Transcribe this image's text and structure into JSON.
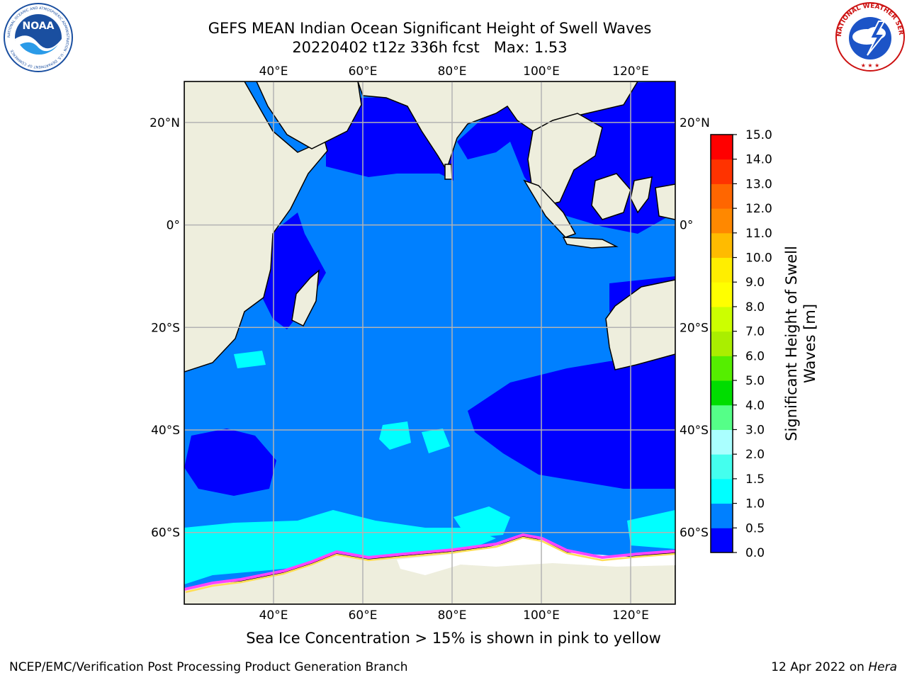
{
  "header": {
    "title_line1": "GEFS MEAN Indian Ocean Significant Height of Swell Waves",
    "title_line2": "20220402 t12z 336h fcst   Max: 1.53"
  },
  "logos": {
    "left": {
      "text": "NOAA",
      "ring_text": "NATIONAL OCEANIC AND ATMOSPHERIC ADMINISTRATION · U.S. DEPARTMENT OF COMMERCE"
    },
    "right": {
      "ring_text": "NATIONAL WEATHER SERVICE"
    }
  },
  "map": {
    "projection": "lat-lon",
    "lon_range": [
      20,
      130
    ],
    "lat_range": [
      -74,
      28
    ],
    "lon_ticks": [
      "40°E",
      "60°E",
      "80°E",
      "100°E",
      "120°E"
    ],
    "lat_ticks": [
      "20°N",
      "0°",
      "20°S",
      "40°S",
      "60°S"
    ],
    "grid": true,
    "colors": {
      "land": "#eeeedd",
      "ocean_0_0.5": "#0000ff",
      "ocean_0.5_1.0": "#0080ff",
      "ocean_1.0_1.5": "#00ffff",
      "sea_ice_pink": "#ff44ff",
      "sea_ice_yellow": "#ffdd55"
    },
    "max_value": 1.53
  },
  "colorbar": {
    "label": "Significant Height of Swell Waves [m]",
    "ticks": [
      "0.0",
      "0.5",
      "1.0",
      "1.5",
      "2.0",
      "3.0",
      "4.0",
      "5.0",
      "6.0",
      "7.0",
      "8.0",
      "9.0",
      "10.0",
      "11.0",
      "12.0",
      "13.0",
      "14.0",
      "15.0"
    ],
    "colors": [
      "#0000ff",
      "#0080ff",
      "#00ffff",
      "#44ffee",
      "#aaffff",
      "#55ff88",
      "#00dd00",
      "#55ee00",
      "#aaee00",
      "#ccff00",
      "#ffff00",
      "#ffee00",
      "#ffbb00",
      "#ff8800",
      "#ff6600",
      "#ff3300",
      "#ff0000"
    ]
  },
  "subtitle": "Sea Ice Concentration > 15% is shown in pink to yellow",
  "footer": {
    "left": "NCEP/EMC/Verification Post Processing Product Generation Branch",
    "date": "12 Apr 2022 on ",
    "machine": "Hera"
  }
}
